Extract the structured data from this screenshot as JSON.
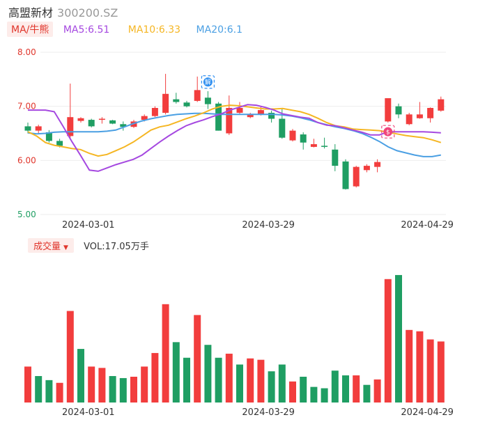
{
  "header": {
    "name": "高盟新材",
    "code": "300200.SZ"
  },
  "ma_legend": {
    "toggle_label": "MA/牛熊",
    "ma5_label": "MA5:6.51",
    "ma10_label": "MA10:6.33",
    "ma20_label": "MA20:6.1"
  },
  "volume_legend": {
    "toggle_label": "成交量",
    "value_label": "VOL:17.05万手"
  },
  "markers": {
    "blue_badge": "解",
    "pink_badge": "$"
  },
  "colors": {
    "up": "#f23d3d",
    "down": "#1f9e63",
    "ma5": "#a548e0",
    "ma10": "#f5b623",
    "ma20": "#4a9fe3",
    "grid": "#eeeeee",
    "axis_text": "#e0352b"
  },
  "chart_data": [
    {
      "type": "candlestick",
      "y_ticks": [
        "8.00",
        "7.00",
        "6.00",
        "5.00"
      ],
      "y_tick_values": [
        8,
        7,
        6,
        5
      ],
      "ylim": [
        5,
        8
      ],
      "x_tick_labels": [
        "2024-03-01",
        "2024-03-29",
        "2024-04-29"
      ],
      "x_tick_index": [
        4,
        21,
        36
      ],
      "candles": [
        {
          "o": 6.63,
          "c": 6.55,
          "h": 6.7,
          "l": 6.5
        },
        {
          "o": 6.55,
          "c": 6.63,
          "h": 6.66,
          "l": 6.5
        },
        {
          "o": 6.52,
          "c": 6.36,
          "h": 6.56,
          "l": 6.33
        },
        {
          "o": 6.36,
          "c": 6.27,
          "h": 6.4,
          "l": 6.24
        },
        {
          "o": 6.45,
          "c": 6.8,
          "h": 7.42,
          "l": 6.42
        },
        {
          "o": 6.73,
          "c": 6.78,
          "h": 6.8,
          "l": 6.7
        },
        {
          "o": 6.75,
          "c": 6.63,
          "h": 6.77,
          "l": 6.61
        },
        {
          "o": 6.76,
          "c": 6.77,
          "h": 6.8,
          "l": 6.68
        },
        {
          "o": 6.74,
          "c": 6.68,
          "h": 6.75,
          "l": 6.67
        },
        {
          "o": 6.67,
          "c": 6.62,
          "h": 6.72,
          "l": 6.55
        },
        {
          "o": 6.62,
          "c": 6.72,
          "h": 6.75,
          "l": 6.6
        },
        {
          "o": 6.75,
          "c": 6.82,
          "h": 6.85,
          "l": 6.72
        },
        {
          "o": 6.82,
          "c": 6.97,
          "h": 7.0,
          "l": 6.8
        },
        {
          "o": 6.88,
          "c": 7.23,
          "h": 7.6,
          "l": 6.85
        },
        {
          "o": 7.13,
          "c": 7.08,
          "h": 7.25,
          "l": 7.05
        },
        {
          "o": 7.07,
          "c": 7.0,
          "h": 7.1,
          "l": 6.98
        },
        {
          "o": 7.1,
          "c": 7.3,
          "h": 7.55,
          "l": 7.08
        },
        {
          "o": 7.16,
          "c": 7.04,
          "h": 7.28,
          "l": 6.95
        },
        {
          "o": 7.05,
          "c": 6.55,
          "h": 7.08,
          "l": 6.55
        },
        {
          "o": 6.5,
          "c": 6.97,
          "h": 7.2,
          "l": 6.47
        },
        {
          "o": 6.88,
          "c": 6.97,
          "h": 7.08,
          "l": 6.85
        },
        {
          "o": 6.8,
          "c": 6.85,
          "h": 6.88,
          "l": 6.78
        },
        {
          "o": 6.85,
          "c": 6.93,
          "h": 7.0,
          "l": 6.83
        },
        {
          "o": 6.88,
          "c": 6.77,
          "h": 6.92,
          "l": 6.7
        },
        {
          "o": 6.77,
          "c": 6.42,
          "h": 6.95,
          "l": 6.4
        },
        {
          "o": 6.37,
          "c": 6.55,
          "h": 6.58,
          "l": 6.35
        },
        {
          "o": 6.48,
          "c": 6.33,
          "h": 6.52,
          "l": 6.2
        },
        {
          "o": 6.25,
          "c": 6.3,
          "h": 6.4,
          "l": 6.24
        },
        {
          "o": 6.27,
          "c": 6.25,
          "h": 6.42,
          "l": 6.22
        },
        {
          "o": 6.2,
          "c": 5.9,
          "h": 6.3,
          "l": 5.8
        },
        {
          "o": 5.98,
          "c": 5.47,
          "h": 6.02,
          "l": 5.46
        },
        {
          "o": 5.52,
          "c": 5.88,
          "h": 5.9,
          "l": 5.5
        },
        {
          "o": 5.82,
          "c": 5.9,
          "h": 5.93,
          "l": 5.78
        },
        {
          "o": 5.88,
          "c": 5.97,
          "h": 6.02,
          "l": 5.78
        },
        {
          "o": 6.72,
          "c": 7.15,
          "h": 7.15,
          "l": 6.7
        },
        {
          "o": 7.0,
          "c": 6.85,
          "h": 7.05,
          "l": 6.78
        },
        {
          "o": 6.67,
          "c": 6.85,
          "h": 6.88,
          "l": 6.65
        },
        {
          "o": 6.78,
          "c": 6.85,
          "h": 7.08,
          "l": 6.77
        },
        {
          "o": 6.78,
          "c": 6.97,
          "h": 6.98,
          "l": 6.7
        },
        {
          "o": 6.92,
          "c": 7.13,
          "h": 7.18,
          "l": 6.9
        }
      ],
      "ma5": [
        6.93,
        6.93,
        6.93,
        6.9,
        6.63,
        6.35,
        6.09,
        5.82,
        5.8,
        5.86,
        5.92,
        5.97,
        6.02,
        6.1,
        6.22,
        6.34,
        6.45,
        6.55,
        6.64,
        6.7,
        6.75,
        6.81,
        6.86,
        6.93,
        6.98,
        7.03,
        7.02,
        6.98,
        6.93,
        6.86,
        6.83,
        6.8,
        6.78,
        6.7,
        6.65,
        6.64,
        6.6,
        6.56,
        6.52,
        6.47,
        6.47,
        6.53,
        6.53,
        6.53,
        6.53,
        6.53,
        6.52,
        6.51
      ],
      "ma10": [
        6.53,
        6.45,
        6.33,
        6.28,
        6.25,
        6.22,
        6.2,
        6.13,
        6.08,
        6.11,
        6.18,
        6.25,
        6.34,
        6.45,
        6.56,
        6.62,
        6.65,
        6.71,
        6.77,
        6.82,
        6.88,
        6.95,
        7.0,
        7.02,
        7.01,
        6.99,
        6.97,
        6.95,
        6.95,
        6.96,
        6.93,
        6.9,
        6.85,
        6.78,
        6.7,
        6.64,
        6.62,
        6.58,
        6.57,
        6.56,
        6.55,
        6.52,
        6.49,
        6.46,
        6.44,
        6.42,
        6.38,
        6.33
      ],
      "ma20": [
        6.51,
        6.49,
        6.5,
        6.52,
        6.53,
        6.53,
        6.53,
        6.53,
        6.53,
        6.54,
        6.56,
        6.62,
        6.68,
        6.73,
        6.77,
        6.8,
        6.83,
        6.85,
        6.86,
        6.87,
        6.87,
        6.86,
        6.85,
        6.85,
        6.85,
        6.85,
        6.85,
        6.85,
        6.85,
        6.84,
        6.82,
        6.79,
        6.75,
        6.7,
        6.66,
        6.62,
        6.59,
        6.55,
        6.5,
        6.43,
        6.35,
        6.25,
        6.18,
        6.14,
        6.1,
        6.07,
        6.07,
        6.1
      ],
      "markers": [
        {
          "index": 17,
          "price": 7.45,
          "kind": "blue_badge"
        },
        {
          "index": 34,
          "price": 6.53,
          "kind": "pink_badge"
        }
      ]
    },
    {
      "type": "bar",
      "title": "成交量",
      "x_tick_labels": [
        "2024-03-01",
        "2024-03-29",
        "2024-04-29"
      ],
      "x_tick_index": [
        4,
        21,
        36
      ],
      "volumes": [
        5.3,
        3.9,
        3.3,
        2.9,
        13.5,
        7.9,
        5.3,
        5.1,
        3.9,
        3.6,
        3.8,
        5.3,
        7.3,
        14.5,
        8.9,
        6.6,
        12.9,
        8.5,
        6.6,
        7.2,
        5.6,
        6.5,
        6.3,
        4.6,
        5.6,
        3.1,
        3.8,
        2.3,
        2.1,
        4.7,
        4.0,
        4.0,
        2.6,
        3.4,
        18.2,
        18.8,
        10.7,
        10.5,
        9.3,
        9.0
      ],
      "direction": [
        "u",
        "d",
        "d",
        "u",
        "u",
        "d",
        "u",
        "u",
        "d",
        "d",
        "u",
        "u",
        "u",
        "u",
        "d",
        "d",
        "u",
        "d",
        "d",
        "u",
        "d",
        "u",
        "u",
        "d",
        "d",
        "u",
        "d",
        "d",
        "d",
        "d",
        "d",
        "u",
        "d",
        "u",
        "u",
        "d",
        "u",
        "u",
        "u",
        "u"
      ]
    }
  ]
}
